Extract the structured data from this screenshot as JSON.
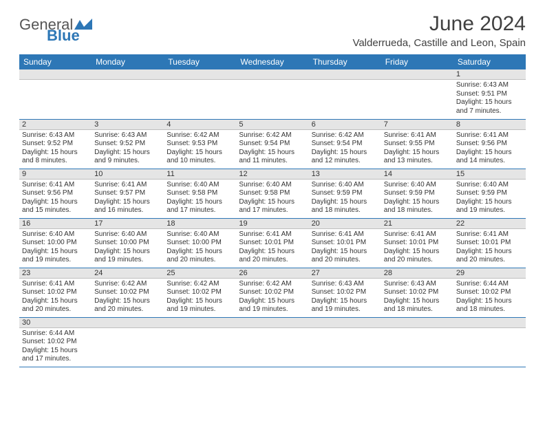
{
  "brand": {
    "name1": "General",
    "name2": "Blue"
  },
  "title": "June 2024",
  "location": "Valderrueda, Castille and Leon, Spain",
  "colors": {
    "header_bg": "#2d77b6",
    "header_fg": "#ffffff",
    "stripe": "#e5e5e5",
    "rule": "#2d77b6"
  },
  "weekdays": [
    "Sunday",
    "Monday",
    "Tuesday",
    "Wednesday",
    "Thursday",
    "Friday",
    "Saturday"
  ],
  "weeks": [
    [
      {
        "n": "",
        "sr": "",
        "ss": "",
        "dl": ""
      },
      {
        "n": "",
        "sr": "",
        "ss": "",
        "dl": ""
      },
      {
        "n": "",
        "sr": "",
        "ss": "",
        "dl": ""
      },
      {
        "n": "",
        "sr": "",
        "ss": "",
        "dl": ""
      },
      {
        "n": "",
        "sr": "",
        "ss": "",
        "dl": ""
      },
      {
        "n": "",
        "sr": "",
        "ss": "",
        "dl": ""
      },
      {
        "n": "1",
        "sr": "Sunrise: 6:43 AM",
        "ss": "Sunset: 9:51 PM",
        "dl": "Daylight: 15 hours and 7 minutes."
      }
    ],
    [
      {
        "n": "2",
        "sr": "Sunrise: 6:43 AM",
        "ss": "Sunset: 9:52 PM",
        "dl": "Daylight: 15 hours and 8 minutes."
      },
      {
        "n": "3",
        "sr": "Sunrise: 6:43 AM",
        "ss": "Sunset: 9:52 PM",
        "dl": "Daylight: 15 hours and 9 minutes."
      },
      {
        "n": "4",
        "sr": "Sunrise: 6:42 AM",
        "ss": "Sunset: 9:53 PM",
        "dl": "Daylight: 15 hours and 10 minutes."
      },
      {
        "n": "5",
        "sr": "Sunrise: 6:42 AM",
        "ss": "Sunset: 9:54 PM",
        "dl": "Daylight: 15 hours and 11 minutes."
      },
      {
        "n": "6",
        "sr": "Sunrise: 6:42 AM",
        "ss": "Sunset: 9:54 PM",
        "dl": "Daylight: 15 hours and 12 minutes."
      },
      {
        "n": "7",
        "sr": "Sunrise: 6:41 AM",
        "ss": "Sunset: 9:55 PM",
        "dl": "Daylight: 15 hours and 13 minutes."
      },
      {
        "n": "8",
        "sr": "Sunrise: 6:41 AM",
        "ss": "Sunset: 9:56 PM",
        "dl": "Daylight: 15 hours and 14 minutes."
      }
    ],
    [
      {
        "n": "9",
        "sr": "Sunrise: 6:41 AM",
        "ss": "Sunset: 9:56 PM",
        "dl": "Daylight: 15 hours and 15 minutes."
      },
      {
        "n": "10",
        "sr": "Sunrise: 6:41 AM",
        "ss": "Sunset: 9:57 PM",
        "dl": "Daylight: 15 hours and 16 minutes."
      },
      {
        "n": "11",
        "sr": "Sunrise: 6:40 AM",
        "ss": "Sunset: 9:58 PM",
        "dl": "Daylight: 15 hours and 17 minutes."
      },
      {
        "n": "12",
        "sr": "Sunrise: 6:40 AM",
        "ss": "Sunset: 9:58 PM",
        "dl": "Daylight: 15 hours and 17 minutes."
      },
      {
        "n": "13",
        "sr": "Sunrise: 6:40 AM",
        "ss": "Sunset: 9:59 PM",
        "dl": "Daylight: 15 hours and 18 minutes."
      },
      {
        "n": "14",
        "sr": "Sunrise: 6:40 AM",
        "ss": "Sunset: 9:59 PM",
        "dl": "Daylight: 15 hours and 18 minutes."
      },
      {
        "n": "15",
        "sr": "Sunrise: 6:40 AM",
        "ss": "Sunset: 9:59 PM",
        "dl": "Daylight: 15 hours and 19 minutes."
      }
    ],
    [
      {
        "n": "16",
        "sr": "Sunrise: 6:40 AM",
        "ss": "Sunset: 10:00 PM",
        "dl": "Daylight: 15 hours and 19 minutes."
      },
      {
        "n": "17",
        "sr": "Sunrise: 6:40 AM",
        "ss": "Sunset: 10:00 PM",
        "dl": "Daylight: 15 hours and 19 minutes."
      },
      {
        "n": "18",
        "sr": "Sunrise: 6:40 AM",
        "ss": "Sunset: 10:00 PM",
        "dl": "Daylight: 15 hours and 20 minutes."
      },
      {
        "n": "19",
        "sr": "Sunrise: 6:41 AM",
        "ss": "Sunset: 10:01 PM",
        "dl": "Daylight: 15 hours and 20 minutes."
      },
      {
        "n": "20",
        "sr": "Sunrise: 6:41 AM",
        "ss": "Sunset: 10:01 PM",
        "dl": "Daylight: 15 hours and 20 minutes."
      },
      {
        "n": "21",
        "sr": "Sunrise: 6:41 AM",
        "ss": "Sunset: 10:01 PM",
        "dl": "Daylight: 15 hours and 20 minutes."
      },
      {
        "n": "22",
        "sr": "Sunrise: 6:41 AM",
        "ss": "Sunset: 10:01 PM",
        "dl": "Daylight: 15 hours and 20 minutes."
      }
    ],
    [
      {
        "n": "23",
        "sr": "Sunrise: 6:41 AM",
        "ss": "Sunset: 10:02 PM",
        "dl": "Daylight: 15 hours and 20 minutes."
      },
      {
        "n": "24",
        "sr": "Sunrise: 6:42 AM",
        "ss": "Sunset: 10:02 PM",
        "dl": "Daylight: 15 hours and 20 minutes."
      },
      {
        "n": "25",
        "sr": "Sunrise: 6:42 AM",
        "ss": "Sunset: 10:02 PM",
        "dl": "Daylight: 15 hours and 19 minutes."
      },
      {
        "n": "26",
        "sr": "Sunrise: 6:42 AM",
        "ss": "Sunset: 10:02 PM",
        "dl": "Daylight: 15 hours and 19 minutes."
      },
      {
        "n": "27",
        "sr": "Sunrise: 6:43 AM",
        "ss": "Sunset: 10:02 PM",
        "dl": "Daylight: 15 hours and 19 minutes."
      },
      {
        "n": "28",
        "sr": "Sunrise: 6:43 AM",
        "ss": "Sunset: 10:02 PM",
        "dl": "Daylight: 15 hours and 18 minutes."
      },
      {
        "n": "29",
        "sr": "Sunrise: 6:44 AM",
        "ss": "Sunset: 10:02 PM",
        "dl": "Daylight: 15 hours and 18 minutes."
      }
    ],
    [
      {
        "n": "30",
        "sr": "Sunrise: 6:44 AM",
        "ss": "Sunset: 10:02 PM",
        "dl": "Daylight: 15 hours and 17 minutes."
      },
      {
        "n": "",
        "sr": "",
        "ss": "",
        "dl": ""
      },
      {
        "n": "",
        "sr": "",
        "ss": "",
        "dl": ""
      },
      {
        "n": "",
        "sr": "",
        "ss": "",
        "dl": ""
      },
      {
        "n": "",
        "sr": "",
        "ss": "",
        "dl": ""
      },
      {
        "n": "",
        "sr": "",
        "ss": "",
        "dl": ""
      },
      {
        "n": "",
        "sr": "",
        "ss": "",
        "dl": ""
      }
    ]
  ]
}
